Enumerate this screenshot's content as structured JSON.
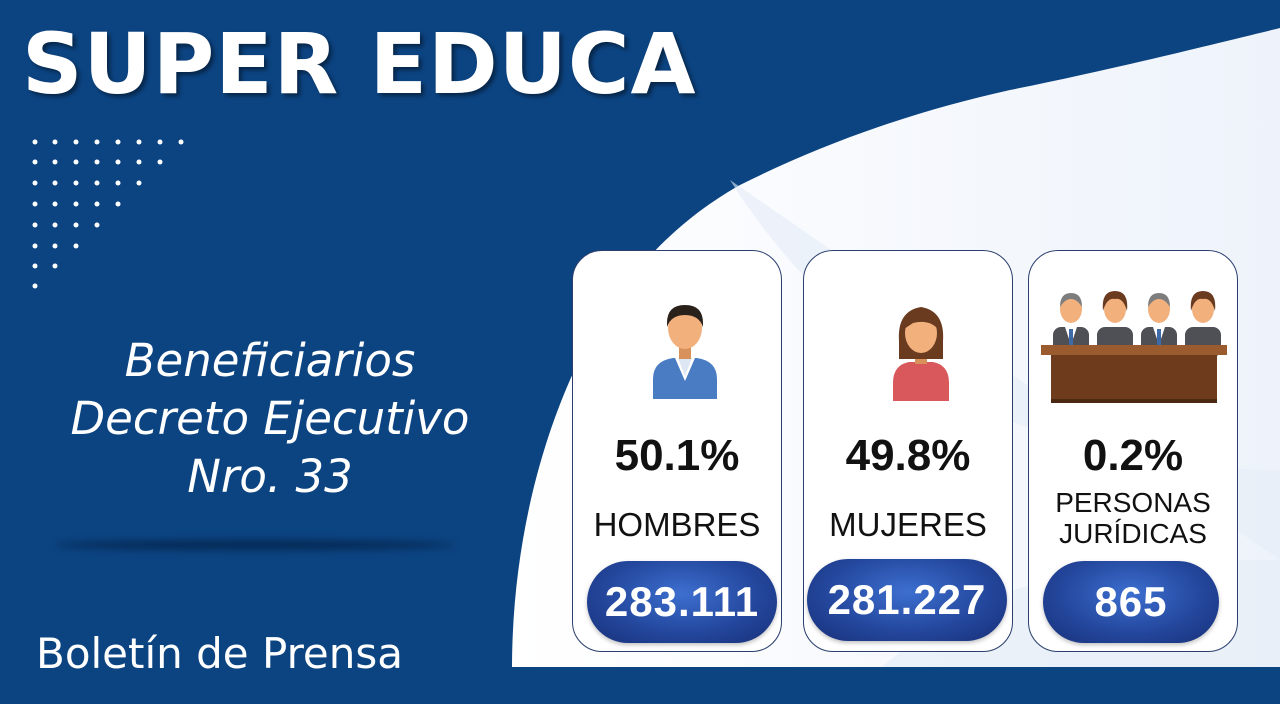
{
  "brand": {
    "title": "SUPER EDUCA",
    "background_color": "#0c4482",
    "accent_color": "#24489e"
  },
  "subtitle": {
    "line1": "Beneficiarios",
    "line2": "Decreto Ejecutivo",
    "line3": "Nro. 33"
  },
  "footer": {
    "text": "Boletín de Prensa"
  },
  "cards": [
    {
      "icon": "man-icon",
      "percent": "50.1%",
      "label": "HOMBRES",
      "count": "283.111"
    },
    {
      "icon": "woman-icon",
      "percent": "49.8%",
      "label": "MUJERES",
      "count": "281.227"
    },
    {
      "icon": "group-at-desk-icon",
      "percent": "0.2%",
      "label_line1": "PERSONAS",
      "label_line2": "JURÍDICAS",
      "count": "865"
    }
  ]
}
